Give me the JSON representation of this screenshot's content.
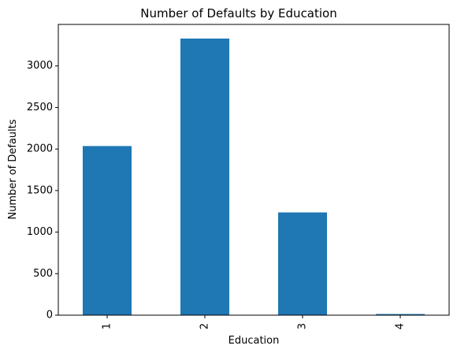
{
  "chart_data": {
    "type": "bar",
    "title": "Number of Defaults by Education",
    "xlabel": "Education",
    "ylabel": "Number of Defaults",
    "categories": [
      "1",
      "2",
      "3",
      "4"
    ],
    "values": [
      2036,
      3330,
      1237,
      14
    ],
    "ylim": [
      0,
      3500
    ],
    "yticks": [
      "0",
      "500",
      "1000",
      "1500",
      "2000",
      "2500",
      "3000"
    ],
    "bar_color": "#1f77b4",
    "grid": false,
    "legend": "none"
  }
}
